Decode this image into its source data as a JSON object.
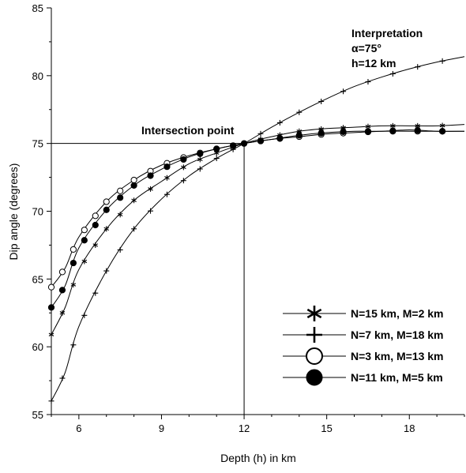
{
  "chart_data": {
    "type": "line",
    "xlabel": "Depth (h) in km",
    "ylabel": "Dip angle (degrees)",
    "xlim": [
      5,
      20
    ],
    "ylim": [
      55,
      85
    ],
    "xticks": [
      6,
      9,
      12,
      15,
      18
    ],
    "yticks": [
      55,
      60,
      65,
      70,
      75,
      80,
      85
    ],
    "grid": false,
    "legend_position": "bottom-right",
    "annotations": {
      "interpretation_title": "Interpretation",
      "alpha": "α=75°",
      "h": "h=12 km",
      "intersection": "Intersection point"
    },
    "reference_lines": {
      "h": 12,
      "dip": 75
    },
    "series": [
      {
        "name": "N=15 km, M=2 km",
        "marker": "star",
        "x": [
          5,
          5.5,
          6,
          7,
          8,
          9,
          10,
          11,
          12,
          13,
          14,
          15,
          16,
          17,
          18,
          19,
          20
        ],
        "y": [
          60.9,
          62.9,
          65.7,
          68.7,
          70.8,
          72.2,
          73.5,
          74.3,
          75,
          75.5,
          75.9,
          76.1,
          76.2,
          76.3,
          76.3,
          76.3,
          76.4
        ]
      },
      {
        "name": "N=7 km, M=18 km",
        "marker": "plus",
        "x": [
          5,
          5.5,
          6,
          7,
          8,
          9,
          10,
          11,
          12,
          13,
          14,
          15,
          16,
          17,
          18,
          19,
          20
        ],
        "y": [
          56.0,
          58.1,
          61.5,
          65.6,
          68.7,
          70.9,
          72.6,
          73.9,
          75,
          76.2,
          77.3,
          78.3,
          79.2,
          79.9,
          80.5,
          81.0,
          81.4
        ]
      },
      {
        "name": "N=3 km, M=13 km",
        "marker": "open-circle",
        "x": [
          5,
          5.5,
          6,
          7,
          8,
          9,
          10,
          11,
          12,
          13,
          14,
          15,
          16,
          17,
          18,
          19,
          20
        ],
        "y": [
          64.4,
          65.8,
          68.1,
          70.7,
          72.3,
          73.4,
          74.1,
          74.6,
          75,
          75.3,
          75.5,
          75.7,
          75.8,
          75.9,
          75.9,
          75.9,
          75.9
        ]
      },
      {
        "name": "N=11 km, M=5 km",
        "marker": "filled-circle",
        "x": [
          5,
          5.5,
          6,
          7,
          8,
          9,
          10,
          11,
          12,
          13,
          14,
          15,
          16,
          17,
          18,
          19,
          20
        ],
        "y": [
          62.9,
          64.5,
          67.3,
          70.1,
          71.9,
          73.1,
          74.0,
          74.6,
          75,
          75.3,
          75.6,
          75.8,
          75.9,
          75.9,
          76.0,
          75.9,
          75.9
        ]
      }
    ]
  }
}
